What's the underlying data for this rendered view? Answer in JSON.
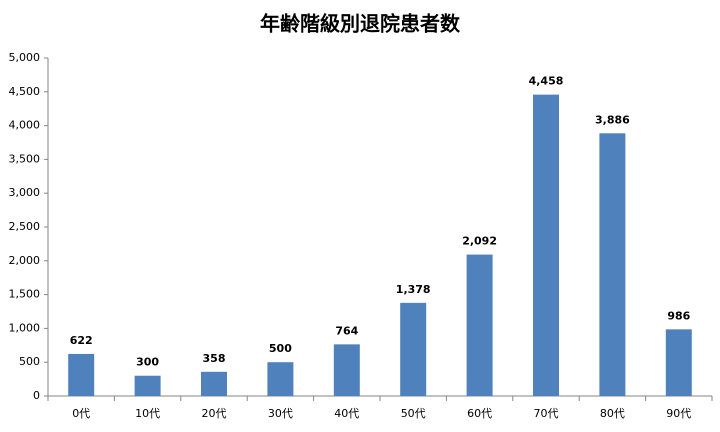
{
  "chart_data": {
    "type": "bar",
    "title": "年齢階級別退院患者数",
    "categories": [
      "0代",
      "10代",
      "20代",
      "30代",
      "40代",
      "50代",
      "60代",
      "70代",
      "80代",
      "90代"
    ],
    "values": [
      622,
      300,
      358,
      500,
      764,
      1378,
      2092,
      4458,
      3886,
      986
    ],
    "value_labels": [
      "622",
      "300",
      "358",
      "500",
      "764",
      "1,378",
      "2,092",
      "4,458",
      "3,886",
      "986"
    ],
    "color": "#4f81bd",
    "ylim": [
      0,
      5000
    ],
    "yticks": [
      0,
      500,
      {
        "value": 1000,
        "label": "1,000"
      },
      {
        "value": 1500,
        "label": "1,500"
      },
      {
        "value": 2000,
        "label": "2,000"
      },
      {
        "value": 2500,
        "label": "2,500"
      },
      {
        "value": 3000,
        "label": "3,000"
      },
      {
        "value": 3500,
        "label": "3,500"
      },
      {
        "value": 4000,
        "label": "4,000"
      },
      {
        "value": 4500,
        "label": "4,500"
      },
      {
        "value": 5000,
        "label": "5,000"
      }
    ],
    "grid": false
  }
}
